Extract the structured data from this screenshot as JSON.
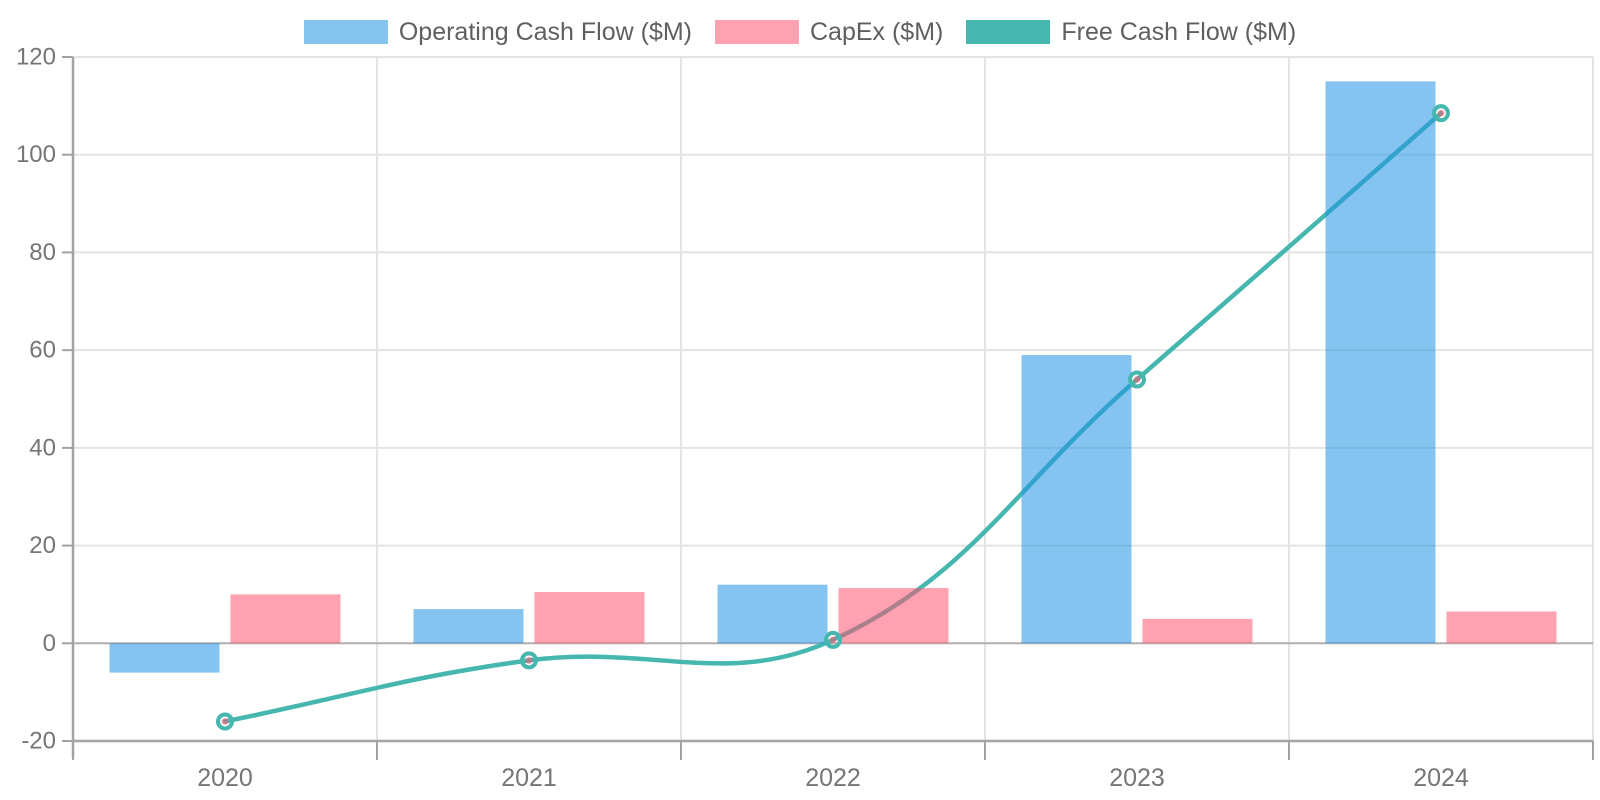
{
  "chart_data": {
    "type": "bar+line",
    "title": "",
    "xlabel": "",
    "ylabel": "",
    "categories": [
      "2020",
      "2021",
      "2022",
      "2023",
      "2024"
    ],
    "series": [
      {
        "name": "Operating Cash Flow ($M)",
        "type": "bar",
        "values": [
          -6,
          7,
          12,
          59,
          115
        ],
        "color": "#85C4EF",
        "base_color": "#2194E4",
        "fill_opacity": 0.55
      },
      {
        "name": "CapEx ($M)",
        "type": "bar",
        "values": [
          10,
          10.5,
          11.3,
          5,
          6.5
        ],
        "color": "#FFA1B1",
        "base_color": "#FF5471",
        "fill_opacity": 0.55
      },
      {
        "name": "Free Cash Flow ($M)",
        "type": "line",
        "values": [
          -16,
          -3.5,
          0.7,
          54,
          108.5
        ],
        "color": "#45B7AF",
        "point_ring_color": "#45B7AF",
        "point_center_color": "#FF5471",
        "point_center_opacity": 0.55
      }
    ],
    "ylim": [
      -20,
      120
    ],
    "yticks": [
      -20,
      0,
      20,
      40,
      60,
      80,
      100,
      120
    ],
    "grid": true,
    "legend_position": "top",
    "colors": {
      "gridline": "#E4E4E4",
      "zero_line": "#B0B0B0",
      "axis_line": "#A3A3A3",
      "tick_label": "#757575",
      "legend_text": "#5F5F5F",
      "background": "#FFFFFF"
    }
  }
}
